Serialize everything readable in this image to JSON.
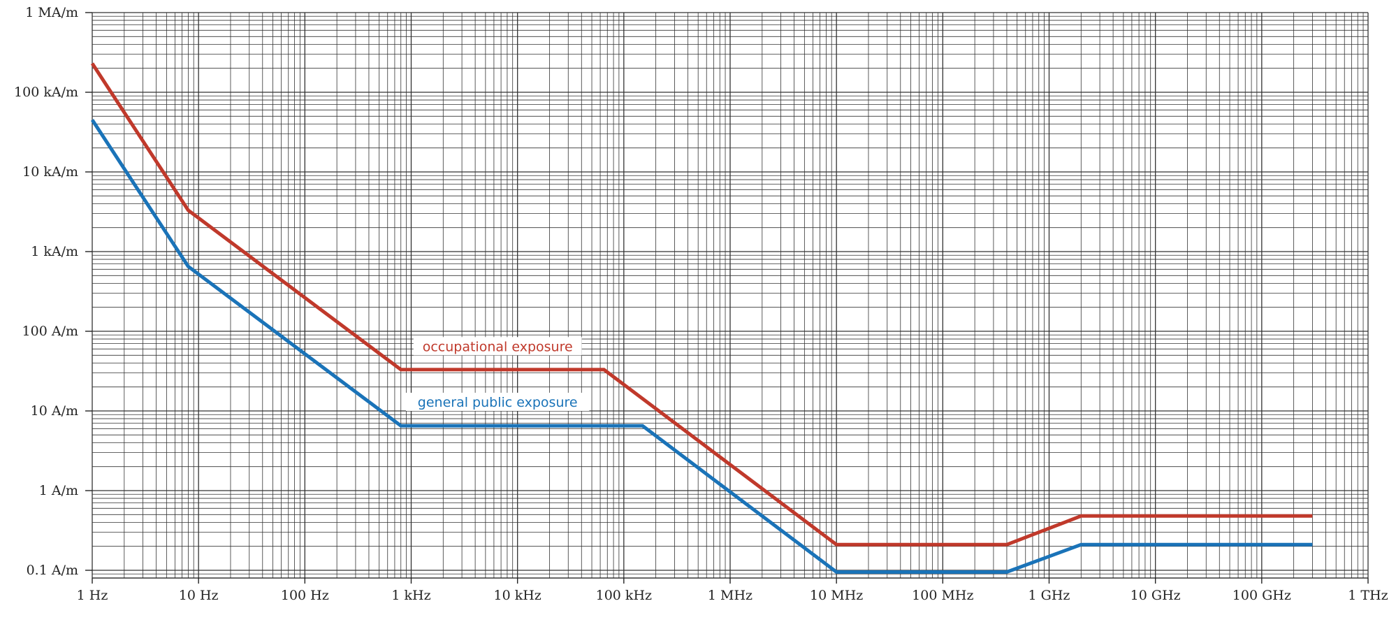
{
  "chart_data": {
    "type": "line",
    "title": "",
    "xlabel": "",
    "ylabel": "",
    "x_scale": "log",
    "y_scale": "log",
    "xlim": [
      1,
      1000000000000
    ],
    "ylim": [
      0.08,
      1000000
    ],
    "grid": true,
    "x_ticks": [
      {
        "value": 1,
        "label": "1 Hz"
      },
      {
        "value": 10,
        "label": "10 Hz"
      },
      {
        "value": 100,
        "label": "100 Hz"
      },
      {
        "value": 1000,
        "label": "1 kHz"
      },
      {
        "value": 10000,
        "label": "10 kHz"
      },
      {
        "value": 100000,
        "label": "100 kHz"
      },
      {
        "value": 1000000,
        "label": "1 MHz"
      },
      {
        "value": 10000000,
        "label": "10 MHz"
      },
      {
        "value": 100000000,
        "label": "100 MHz"
      },
      {
        "value": 1000000000,
        "label": "1 GHz"
      },
      {
        "value": 10000000000,
        "label": "10 GHz"
      },
      {
        "value": 100000000000,
        "label": "100 GHz"
      },
      {
        "value": 1000000000000,
        "label": "1 THz"
      }
    ],
    "y_ticks": [
      {
        "value": 0.1,
        "label": "0.1 A/m"
      },
      {
        "value": 1,
        "label": "1 A/m"
      },
      {
        "value": 10,
        "label": "10 A/m"
      },
      {
        "value": 100,
        "label": "100 A/m"
      },
      {
        "value": 1000,
        "label": "1 kA/m"
      },
      {
        "value": 10000,
        "label": "10 kA/m"
      },
      {
        "value": 100000,
        "label": "100 kA/m"
      },
      {
        "value": 1000000,
        "label": "1 MA/m"
      }
    ],
    "series": [
      {
        "name": "occupational exposure",
        "color": "#c0392b",
        "label_at": {
          "x": 6500,
          "y": 60
        },
        "points": [
          [
            1,
            230000
          ],
          [
            8,
            3300
          ],
          [
            800,
            33
          ],
          [
            65000,
            33
          ],
          [
            10000000,
            0.21
          ],
          [
            400000000,
            0.21
          ],
          [
            2000000000,
            0.48
          ],
          [
            300000000000,
            0.48
          ]
        ]
      },
      {
        "name": "general public exposure",
        "color": "#1a73b8",
        "label_at": {
          "x": 6500,
          "y": 12
        },
        "points": [
          [
            1,
            45000
          ],
          [
            8,
            650
          ],
          [
            800,
            6.5
          ],
          [
            150000,
            6.5
          ],
          [
            10000000,
            0.095
          ],
          [
            400000000,
            0.095
          ],
          [
            2000000000,
            0.21
          ],
          [
            300000000000,
            0.21
          ]
        ]
      }
    ]
  }
}
